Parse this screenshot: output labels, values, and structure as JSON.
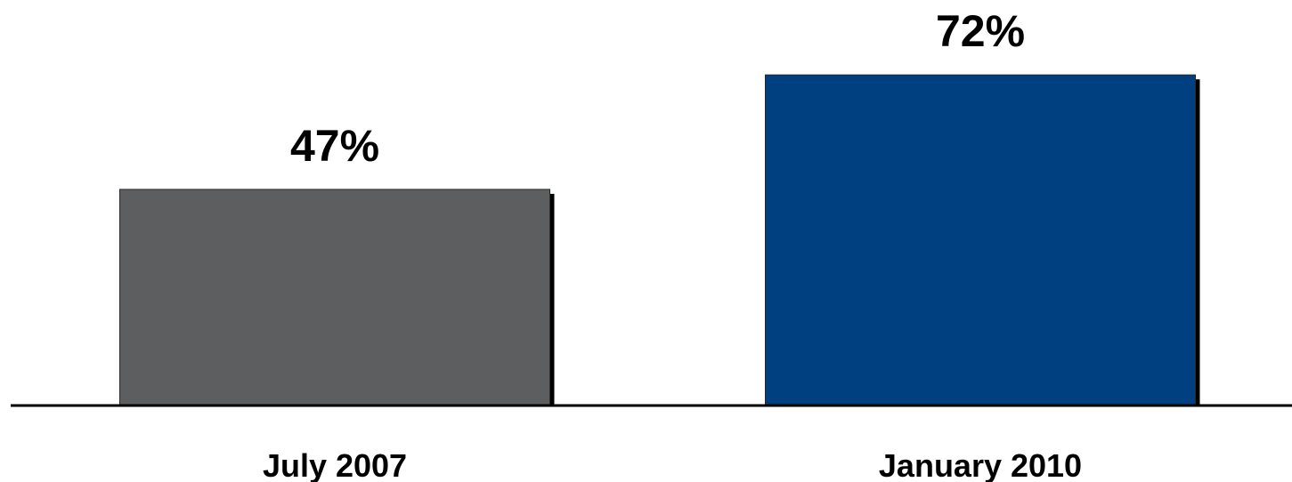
{
  "chart_data": {
    "type": "bar",
    "categories": [
      "July 2007",
      "January 2010"
    ],
    "values": [
      47,
      72
    ],
    "value_labels": [
      "47%",
      "72%"
    ],
    "bar_colors": [
      "#5d5e60",
      "#004080"
    ],
    "shadow_color": "#000000",
    "axis_color": "#000000",
    "title": "",
    "xlabel": "",
    "ylabel": "",
    "ylim": [
      0,
      100
    ],
    "grid": false,
    "legend": "none"
  }
}
